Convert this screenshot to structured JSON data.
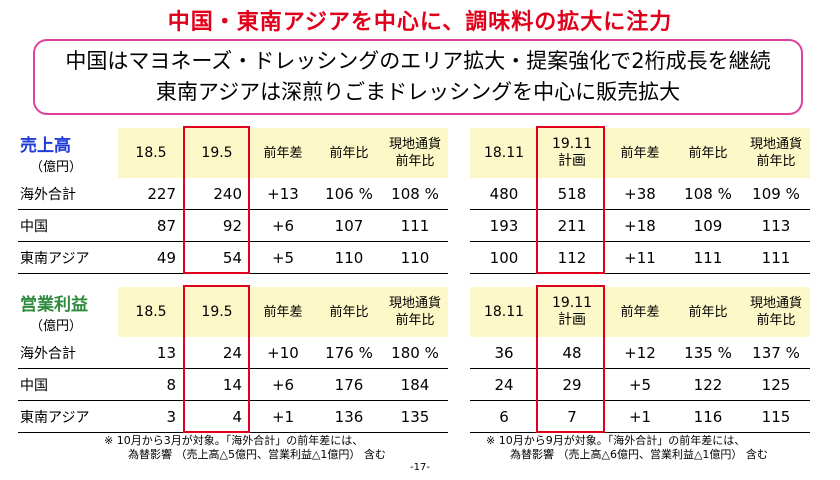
{
  "title": "中国・東南アジアを中心に、調味料の拡大に注力",
  "callout": {
    "line1": "中国はマヨネーズ・ドレッシングのエリア拡大・提案強化で2桁成長を継続",
    "line2": "東南アジアは深煎りごまドレッシングを中心に販売拡大"
  },
  "sales": {
    "label": "売上高",
    "unit": "（億円）",
    "left_headers": [
      "18.5",
      "19.5",
      "前年差",
      "前年比",
      "現地通貨\n前年比"
    ],
    "right_headers": [
      "18.11",
      "19.11\n計画",
      "前年差",
      "前年比",
      "現地通貨\n前年比"
    ],
    "rows": [
      {
        "name": "海外合計",
        "left": [
          "227",
          "240",
          "+13",
          "106 %",
          "108 %"
        ],
        "right": [
          "480",
          "518",
          "+38",
          "108 %",
          "109 %"
        ]
      },
      {
        "name": "中国",
        "left": [
          "87",
          "92",
          "+6",
          "107",
          "111"
        ],
        "right": [
          "193",
          "211",
          "+18",
          "109",
          "113"
        ]
      },
      {
        "name": "東南アジア",
        "left": [
          "49",
          "54",
          "+5",
          "110",
          "110"
        ],
        "right": [
          "100",
          "112",
          "+11",
          "111",
          "111"
        ]
      }
    ]
  },
  "profit": {
    "label": "営業利益",
    "unit": "（億円）",
    "left_headers": [
      "18.5",
      "19.5",
      "前年差",
      "前年比",
      "現地通貨\n前年比"
    ],
    "right_headers": [
      "18.11",
      "19.11\n計画",
      "前年差",
      "前年比",
      "現地通貨\n前年比"
    ],
    "rows": [
      {
        "name": "海外合計",
        "left": [
          "13",
          "24",
          "+10",
          "176 %",
          "180 %"
        ],
        "right": [
          "36",
          "48",
          "+12",
          "135 %",
          "137 %"
        ]
      },
      {
        "name": "中国",
        "left": [
          "8",
          "14",
          "+6",
          "176",
          "184"
        ],
        "right": [
          "24",
          "29",
          "+5",
          "122",
          "125"
        ]
      },
      {
        "name": "東南アジア",
        "left": [
          "3",
          "4",
          "+1",
          "136",
          "135"
        ],
        "right": [
          "6",
          "7",
          "+1",
          "116",
          "115"
        ]
      }
    ]
  },
  "notes": {
    "left_line1": "※ 10月から3月が対象。「海外合計」の前年差には、",
    "left_line2": "為替影響 （売上高△5億円、営業利益△1億円） 含む",
    "right_line1": "※ 10月から9月が対象。「海外合計」の前年差には、",
    "right_line2": "為替影響 （売上高△6億円、営業利益△1億円） 含む"
  },
  "page_number": "-17-"
}
